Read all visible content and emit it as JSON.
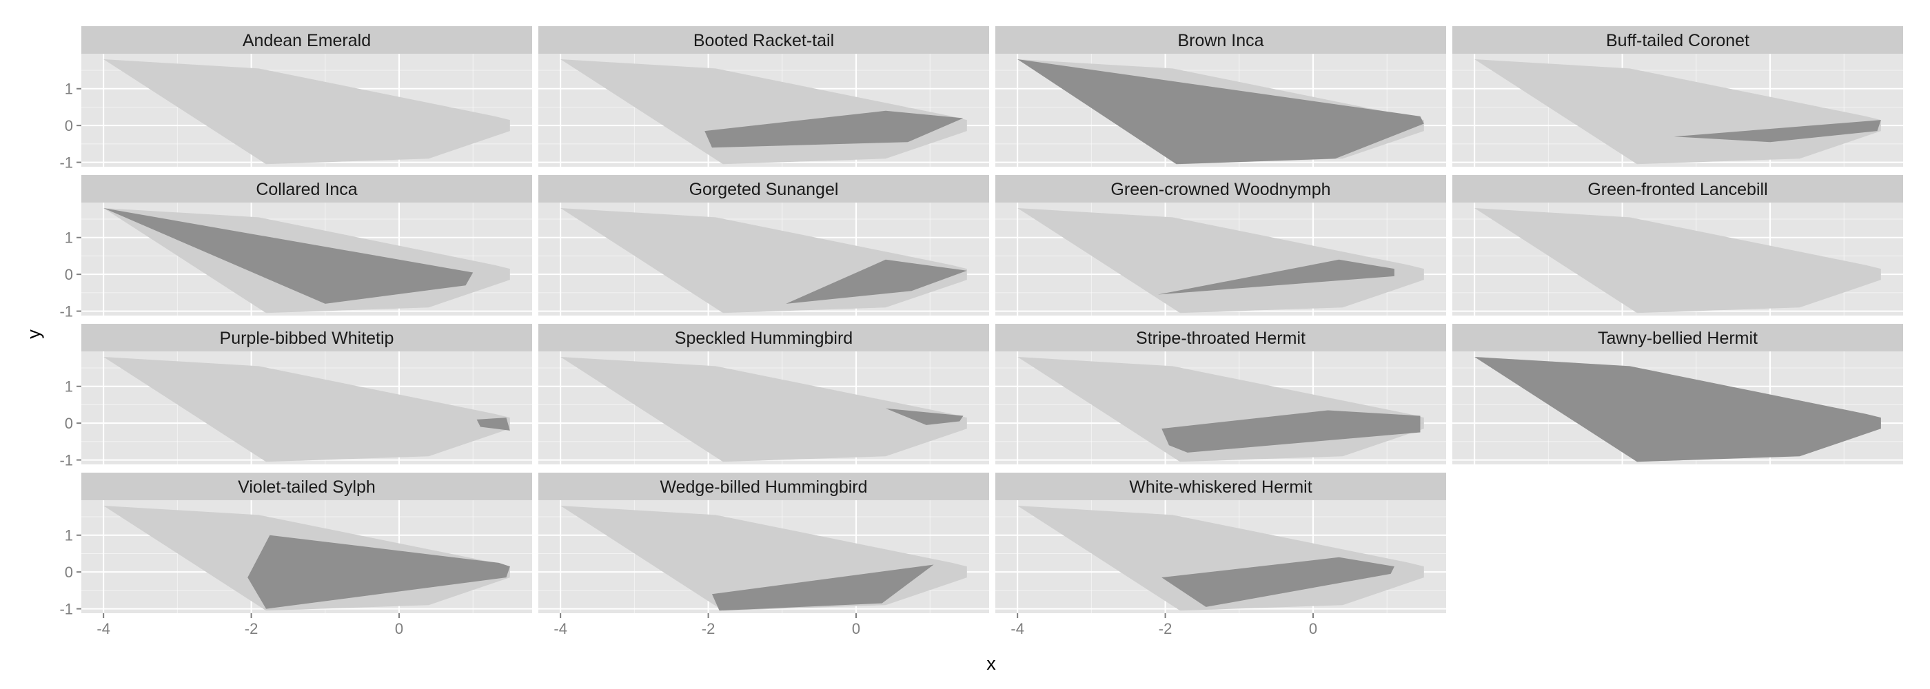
{
  "chart_data": {
    "type": "area",
    "chart_kind": "faceted polygon (convex hull) plot",
    "xlabel": "x",
    "ylabel": "y",
    "xlim": [
      -4.3,
      1.8
    ],
    "ylim": [
      -1.12,
      1.95
    ],
    "x_ticks": [
      -4,
      -2,
      0
    ],
    "x_tick_labels": [
      "-4",
      "-2",
      "0"
    ],
    "y_ticks": [
      -1,
      0,
      1
    ],
    "y_tick_labels": [
      "-1",
      "0",
      "1"
    ],
    "grid": true,
    "facet_columns": 4,
    "colors": {
      "panel_background": "#e5e5e5",
      "grid_major": "#ffffff",
      "strip_background": "#cccccc",
      "background_hull": "#cfcfcf",
      "species_hull": "#8f8f8f",
      "strip_text": "#1a1a1a",
      "tick_text": "#7f7f7f"
    },
    "background_hull": [
      [
        -4.0,
        1.8
      ],
      [
        -1.9,
        1.55
      ],
      [
        1.3,
        0.25
      ],
      [
        1.5,
        0.15
      ],
      [
        1.5,
        -0.15
      ],
      [
        0.4,
        -0.9
      ],
      [
        -1.8,
        -1.05
      ]
    ],
    "facets": [
      {
        "label": "Andean Emerald",
        "polygon": []
      },
      {
        "label": "Booted Racket-tail",
        "polygon": [
          [
            -2.05,
            -0.15
          ],
          [
            0.4,
            0.4
          ],
          [
            1.45,
            0.2
          ],
          [
            0.7,
            -0.45
          ],
          [
            -1.95,
            -0.6
          ]
        ]
      },
      {
        "label": "Brown Inca",
        "polygon": [
          [
            -4.0,
            1.8
          ],
          [
            1.45,
            0.25
          ],
          [
            1.5,
            0.05
          ],
          [
            0.3,
            -0.9
          ],
          [
            -1.85,
            -1.05
          ]
        ]
      },
      {
        "label": "Buff-tailed Coronet",
        "polygon": [
          [
            -1.3,
            -0.3
          ],
          [
            1.5,
            0.15
          ],
          [
            1.45,
            -0.15
          ],
          [
            0.0,
            -0.45
          ]
        ]
      },
      {
        "label": "Collared Inca",
        "polygon": [
          [
            -4.0,
            1.8
          ],
          [
            1.0,
            0.05
          ],
          [
            0.9,
            -0.3
          ],
          [
            -1.0,
            -0.8
          ]
        ]
      },
      {
        "label": "Gorgeted Sunangel",
        "polygon": [
          [
            -0.95,
            -0.8
          ],
          [
            0.4,
            0.4
          ],
          [
            1.5,
            0.1
          ],
          [
            0.75,
            -0.45
          ]
        ]
      },
      {
        "label": "Green-crowned Woodnymph",
        "polygon": [
          [
            -2.1,
            -0.55
          ],
          [
            0.35,
            0.4
          ],
          [
            1.1,
            0.15
          ],
          [
            1.1,
            -0.05
          ]
        ]
      },
      {
        "label": "Green-fronted Lancebill",
        "polygon": []
      },
      {
        "label": "Purple-bibbed Whitetip",
        "polygon": [
          [
            1.05,
            0.1
          ],
          [
            1.45,
            0.15
          ],
          [
            1.5,
            -0.2
          ],
          [
            1.1,
            -0.1
          ]
        ]
      },
      {
        "label": "Speckled Hummingbird",
        "polygon": [
          [
            0.4,
            0.4
          ],
          [
            1.45,
            0.2
          ],
          [
            1.4,
            0.05
          ],
          [
            0.95,
            -0.05
          ]
        ]
      },
      {
        "label": "Stripe-throated Hermit",
        "polygon": [
          [
            -2.05,
            -0.15
          ],
          [
            0.2,
            0.35
          ],
          [
            1.45,
            0.2
          ],
          [
            1.45,
            -0.25
          ],
          [
            -1.7,
            -0.8
          ],
          [
            -1.95,
            -0.6
          ]
        ]
      },
      {
        "label": "Tawny-bellied Hermit",
        "polygon": [
          [
            -4.0,
            1.8
          ],
          [
            -1.9,
            1.55
          ],
          [
            1.3,
            0.25
          ],
          [
            1.5,
            0.15
          ],
          [
            1.5,
            -0.15
          ],
          [
            0.4,
            -0.9
          ],
          [
            -1.8,
            -1.05
          ]
        ]
      },
      {
        "label": "Violet-tailed Sylph",
        "polygon": [
          [
            -2.05,
            -0.15
          ],
          [
            -1.75,
            1.0
          ],
          [
            1.35,
            0.25
          ],
          [
            1.5,
            0.15
          ],
          [
            1.45,
            -0.15
          ],
          [
            -1.8,
            -1.0
          ]
        ]
      },
      {
        "label": "Wedge-billed Hummingbird",
        "polygon": [
          [
            -1.95,
            -0.6
          ],
          [
            1.05,
            0.2
          ],
          [
            0.35,
            -0.85
          ],
          [
            -1.85,
            -1.05
          ]
        ]
      },
      {
        "label": "White-whiskered Hermit",
        "polygon": [
          [
            -2.05,
            -0.15
          ],
          [
            0.35,
            0.4
          ],
          [
            1.1,
            0.15
          ],
          [
            1.05,
            -0.05
          ],
          [
            -1.45,
            -0.95
          ]
        ]
      }
    ]
  }
}
